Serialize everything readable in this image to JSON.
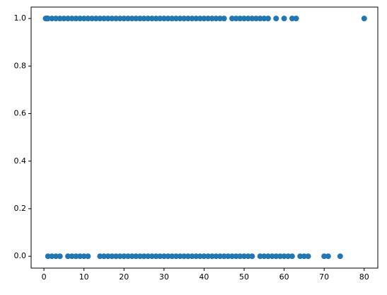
{
  "chart_data": {
    "type": "scatter",
    "color": "#1f77b4",
    "x": [
      0.42,
      0.67,
      0.75,
      0.83,
      0.92,
      1,
      2,
      3,
      4,
      5,
      6,
      7,
      8,
      9,
      10,
      11,
      12,
      13,
      14,
      15,
      16,
      17,
      18,
      19,
      20,
      21,
      22,
      23,
      24,
      25,
      26,
      27,
      28,
      29,
      30,
      31,
      32,
      33,
      34,
      35,
      36,
      37,
      38,
      39,
      40,
      41,
      42,
      43,
      44,
      45,
      47,
      48,
      49,
      50,
      51,
      52,
      53,
      54,
      55,
      56,
      58,
      60,
      62,
      63,
      80,
      1,
      2,
      3,
      4,
      6,
      7,
      8,
      9,
      10,
      11,
      14,
      15,
      16,
      17,
      18,
      19,
      20,
      21,
      22,
      23,
      24,
      25,
      26,
      27,
      28,
      29,
      30,
      31,
      32,
      33,
      34,
      35,
      36,
      37,
      38,
      39,
      40,
      41,
      42,
      43,
      44,
      45,
      46,
      47,
      48,
      49,
      50,
      51,
      52,
      54,
      55,
      56,
      57,
      58,
      59,
      60,
      61,
      62,
      64,
      65,
      66,
      70,
      71,
      74
    ],
    "values": [
      1,
      1,
      1,
      1,
      1,
      1,
      1,
      1,
      1,
      1,
      1,
      1,
      1,
      1,
      1,
      1,
      1,
      1,
      1,
      1,
      1,
      1,
      1,
      1,
      1,
      1,
      1,
      1,
      1,
      1,
      1,
      1,
      1,
      1,
      1,
      1,
      1,
      1,
      1,
      1,
      1,
      1,
      1,
      1,
      1,
      1,
      1,
      1,
      1,
      1,
      1,
      1,
      1,
      1,
      1,
      1,
      1,
      1,
      1,
      1,
      1,
      1,
      1,
      1,
      1,
      0,
      0,
      0,
      0,
      0,
      0,
      0,
      0,
      0,
      0,
      0,
      0,
      0,
      0,
      0,
      0,
      0,
      0,
      0,
      0,
      0,
      0,
      0,
      0,
      0,
      0,
      0,
      0,
      0,
      0,
      0,
      0,
      0,
      0,
      0,
      0,
      0,
      0,
      0,
      0,
      0,
      0,
      0,
      0,
      0,
      0,
      0,
      0,
      0,
      0,
      0,
      0,
      0,
      0,
      0,
      0,
      0,
      0,
      0,
      0,
      0,
      0,
      0,
      0
    ],
    "xlim": [
      -3.2,
      83.4
    ],
    "ylim": [
      -0.05,
      1.048
    ],
    "xticks": [
      0,
      10,
      20,
      30,
      40,
      50,
      60,
      70,
      80
    ],
    "yticks": [
      {
        "value": 0,
        "label": "0.0"
      },
      0.2,
      0.4,
      0.6,
      0.8,
      {
        "value": 1,
        "label": "1.0"
      }
    ]
  }
}
